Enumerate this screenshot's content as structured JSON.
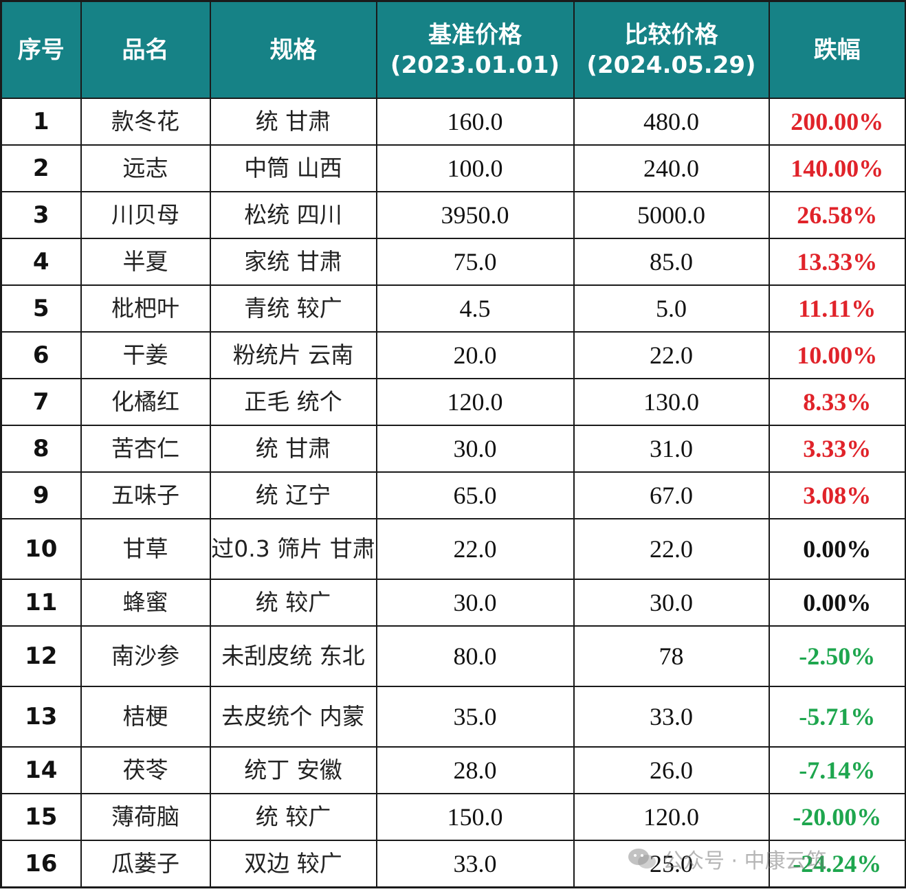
{
  "headers": {
    "index": "序号",
    "name": "品名",
    "spec": "规格",
    "base_price": [
      "基准价格",
      "(2023.01.01)"
    ],
    "compare_price": [
      "比较价格",
      "(2024.05.29)"
    ],
    "change": "跌幅"
  },
  "rows": [
    {
      "index": "1",
      "name": "款冬花",
      "spec": "统 甘肃",
      "base": "160.0",
      "compare": "480.0",
      "change": "200.00%",
      "trend": "up"
    },
    {
      "index": "2",
      "name": "远志",
      "spec": "中筒 山西",
      "base": "100.0",
      "compare": "240.0",
      "change": "140.00%",
      "trend": "up"
    },
    {
      "index": "3",
      "name": "川贝母",
      "spec": "松统 四川",
      "base": "3950.0",
      "compare": "5000.0",
      "change": "26.58%",
      "trend": "up"
    },
    {
      "index": "4",
      "name": "半夏",
      "spec": "家统 甘肃",
      "base": "75.0",
      "compare": "85.0",
      "change": "13.33%",
      "trend": "up"
    },
    {
      "index": "5",
      "name": "枇杷叶",
      "spec": "青统 较广",
      "base": "4.5",
      "compare": "5.0",
      "change": "11.11%",
      "trend": "up"
    },
    {
      "index": "6",
      "name": "干姜",
      "spec": "粉统片 云南",
      "base": "20.0",
      "compare": "22.0",
      "change": "10.00%",
      "trend": "up"
    },
    {
      "index": "7",
      "name": "化橘红",
      "spec": "正毛 统个",
      "base": "120.0",
      "compare": "130.0",
      "change": "8.33%",
      "trend": "up"
    },
    {
      "index": "8",
      "name": "苦杏仁",
      "spec": "统 甘肃",
      "base": "30.0",
      "compare": "31.0",
      "change": "3.33%",
      "trend": "up"
    },
    {
      "index": "9",
      "name": "五味子",
      "spec": "统 辽宁",
      "base": "65.0",
      "compare": "67.0",
      "change": "3.08%",
      "trend": "up"
    },
    {
      "index": "10",
      "name": "甘草",
      "spec": "过0.3 筛片 甘肃",
      "base": "22.0",
      "compare": "22.0",
      "change": "0.00%",
      "trend": "flat"
    },
    {
      "index": "11",
      "name": "蜂蜜",
      "spec": "统 较广",
      "base": "30.0",
      "compare": "30.0",
      "change": "0.00%",
      "trend": "flat"
    },
    {
      "index": "12",
      "name": "南沙参",
      "spec": "未刮皮统 东北",
      "base": "80.0",
      "compare": "78",
      "change": "-2.50%",
      "trend": "down"
    },
    {
      "index": "13",
      "name": "桔梗",
      "spec": "去皮统个 内蒙",
      "base": "35.0",
      "compare": "33.0",
      "change": "-5.71%",
      "trend": "down"
    },
    {
      "index": "14",
      "name": "茯苓",
      "spec": "统丁 安徽",
      "base": "28.0",
      "compare": "26.0",
      "change": "-7.14%",
      "trend": "down"
    },
    {
      "index": "15",
      "name": "薄荷脑",
      "spec": "统 较广",
      "base": "150.0",
      "compare": "120.0",
      "change": "-20.00%",
      "trend": "down"
    },
    {
      "index": "16",
      "name": "瓜蒌子",
      "spec": "双边 较广",
      "base": "33.0",
      "compare": "25.0",
      "change": "-24.24%",
      "trend": "down"
    }
  ],
  "watermark": {
    "text": "公众号 · 中康云筑",
    "icon": "wechat-icon"
  },
  "colors": {
    "header_bg": "#168286",
    "up": "#e0232a",
    "flat": "#111111",
    "down": "#1ea64e"
  }
}
